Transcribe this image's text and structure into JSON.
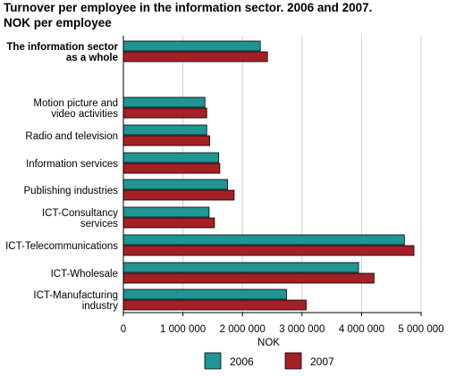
{
  "title_line1": "Turnover per employee in the information sector. 2006 and 2007.",
  "title_line2": "NOK per employee",
  "colors": {
    "s2006": "#1f9594",
    "s2007": "#a52024",
    "grid": "#d0d0d0",
    "axis": "#000000"
  },
  "chart_data": {
    "type": "bar",
    "orientation": "horizontal",
    "title": "Turnover per employee in the information sector. 2006 and 2007. NOK per employee",
    "xlabel": "NOK",
    "ylabel": "",
    "xlim": [
      0,
      5000000
    ],
    "xticks": [
      0,
      1000000,
      2000000,
      3000000,
      4000000,
      5000000
    ],
    "xtick_labels": [
      "0",
      "1 000 000",
      "2 000 000",
      "3 000 000",
      "4 000 000",
      "5 000 000"
    ],
    "grid": true,
    "legend_placement": "bottom",
    "categories": [
      "The information sector as a whole",
      "Motion picture and video activities",
      "Radio and television",
      "Information services",
      "Publishing industries",
      "ICT-Consultancy services",
      "ICT-Telecommunications",
      "ICT-Wholesale",
      "ICT-Manufacturing industry"
    ],
    "category_labels": [
      [
        "The information sector",
        "as a whole"
      ],
      [
        "Motion picture and",
        "video activities"
      ],
      [
        "Radio and television"
      ],
      [
        "Information services"
      ],
      [
        "Publishing industries"
      ],
      [
        "ICT-Consultancy",
        "services"
      ],
      [
        "ICT-Telecommunications"
      ],
      [
        "ICT-Wholesale"
      ],
      [
        "ICT-Manufacturing",
        "industry"
      ]
    ],
    "bold_categories": [
      0
    ],
    "gap_after": [
      0
    ],
    "series": [
      {
        "name": "2006",
        "values": [
          2300000,
          1370000,
          1400000,
          1600000,
          1750000,
          1440000,
          4720000,
          3950000,
          2740000
        ]
      },
      {
        "name": "2007",
        "values": [
          2420000,
          1400000,
          1450000,
          1620000,
          1860000,
          1530000,
          4880000,
          4210000,
          3070000
        ]
      }
    ]
  }
}
